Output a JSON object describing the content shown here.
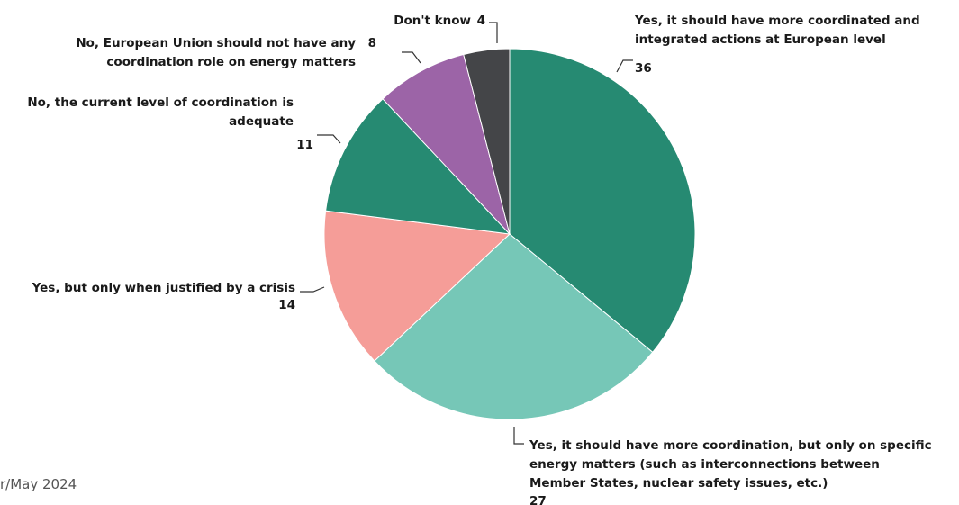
{
  "chart_data": {
    "type": "pie",
    "title": "",
    "slices": [
      {
        "label_lines": [
          "Yes, it should have more coordinated and",
          "integrated actions at European level"
        ],
        "value": 36,
        "color": "#268a72"
      },
      {
        "label_lines": [
          "Yes, it should have more coordination, but only on specific",
          "energy matters (such as interconnections between",
          "Member States, nuclear safety issues, etc.)"
        ],
        "value": 27,
        "color": "#76c7b7"
      },
      {
        "label_lines": [
          "Yes, but only when justified by a crisis"
        ],
        "value": 14,
        "color": "#f59d98"
      },
      {
        "label_lines": [
          "No, the current level of coordination is",
          "adequate"
        ],
        "value": 11,
        "color": "#268a72"
      },
      {
        "label_lines": [
          "No, European Union should not have any",
          "coordination role on energy matters"
        ],
        "value": 8,
        "color": "#9c64a7"
      },
      {
        "label_lines": [
          "Don't know"
        ],
        "value": 4,
        "color": "#444548"
      }
    ]
  },
  "footnote": "r/May 2024"
}
